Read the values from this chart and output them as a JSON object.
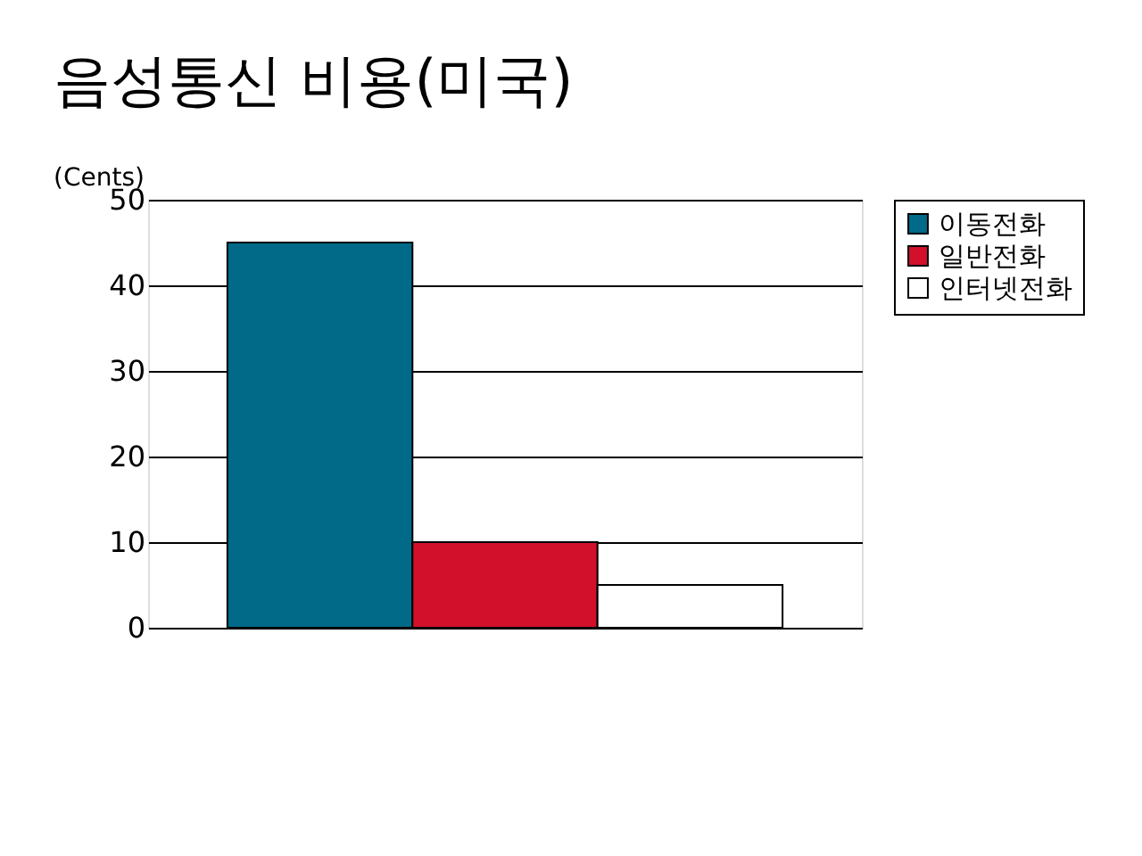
{
  "chart_data": {
    "type": "bar",
    "title": "음성통신 비용(미국)",
    "ylabel": "(Cents)",
    "categories": [
      null
    ],
    "series": [
      {
        "name": "이동전화",
        "color": "#006a88",
        "values": [
          45
        ]
      },
      {
        "name": "일반전화",
        "color": "#d2102c",
        "values": [
          10
        ]
      },
      {
        "name": "인터넷전화",
        "color": "#ffffff",
        "values": [
          5
        ]
      }
    ],
    "ylim": [
      0,
      50
    ],
    "yticks": [
      0,
      10,
      20,
      30,
      40,
      50
    ],
    "grid": "y",
    "legend": "right"
  }
}
